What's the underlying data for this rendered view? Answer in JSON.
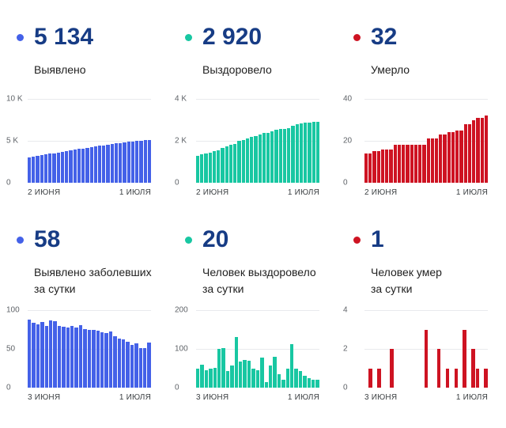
{
  "panels": [
    {
      "value": "5 134",
      "label": "Выявлено",
      "label2": "",
      "color": "#4461e8"
    },
    {
      "value": "2 920",
      "label": "Выздоровело",
      "label2": "",
      "color": "#18c7a2"
    },
    {
      "value": "32",
      "label": "Умерло",
      "label2": "",
      "color": "#ce1322"
    },
    {
      "value": "58",
      "label": "Выявлено заболевших",
      "label2": "за сутки",
      "color": "#4461e8"
    },
    {
      "value": "20",
      "label": "Человек выздоровело",
      "label2": "за сутки",
      "color": "#18c7a2"
    },
    {
      "value": "1",
      "label": "Человек умер",
      "label2": "за сутки",
      "color": "#ce1322"
    }
  ],
  "chart_data": [
    {
      "type": "bar",
      "title": "Выявлено (всего)",
      "x_first": "2 ИЮНЯ",
      "x_last": "1 ИЮЛЯ",
      "y_ticks": [
        "10 K",
        "5 K",
        "0"
      ],
      "ymax": 10000,
      "ylim": [
        0,
        10000
      ],
      "grid": true,
      "legend": false,
      "values": [
        3033,
        3121,
        3205,
        3287,
        3372,
        3452,
        3539,
        3625,
        3705,
        3784,
        3862,
        3942,
        4020,
        4101,
        4177,
        4252,
        4326,
        4399,
        4470,
        4540,
        4612,
        4678,
        4741,
        4803,
        4862,
        4917,
        4974,
        5025,
        5076,
        5134
      ]
    },
    {
      "type": "bar",
      "title": "Выздоровело (всего)",
      "x_first": "2 ИЮНЯ",
      "x_last": "1 ИЮЛЯ",
      "y_ticks": [
        "4 K",
        "2 K",
        "0"
      ],
      "ymax": 4000,
      "ylim": [
        0,
        4000
      ],
      "grid": true,
      "legend": false,
      "values": [
        1297,
        1345,
        1405,
        1450,
        1498,
        1550,
        1650,
        1752,
        1794,
        1852,
        1982,
        2050,
        2122,
        2192,
        2242,
        2287,
        2365,
        2380,
        2438,
        2518,
        2553,
        2573,
        2623,
        2735,
        2783,
        2825,
        2855,
        2880,
        2900,
        2920
      ]
    },
    {
      "type": "bar",
      "title": "Умерло (всего)",
      "x_first": "2 ИЮНЯ",
      "x_last": "1 ИЮЛЯ",
      "y_ticks": [
        "40",
        "20",
        "0"
      ],
      "ymax": 40,
      "ylim": [
        0,
        40
      ],
      "grid": true,
      "legend": false,
      "values": [
        14,
        14,
        15,
        15,
        16,
        16,
        16,
        18,
        18,
        18,
        18,
        18,
        18,
        18,
        18,
        21,
        21,
        21,
        23,
        23,
        24,
        24,
        25,
        25,
        28,
        28,
        30,
        31,
        31,
        32
      ]
    },
    {
      "type": "bar",
      "title": "Выявлено заболевших за сутки",
      "x_first": "3 ИЮНЯ",
      "x_last": "1 ИЮЛЯ",
      "y_ticks": [
        "100",
        "50",
        "0"
      ],
      "ymax": 100,
      "ylim": [
        0,
        100
      ],
      "grid": true,
      "legend": false,
      "values": [
        88,
        84,
        82,
        85,
        80,
        87,
        86,
        80,
        79,
        78,
        80,
        78,
        81,
        76,
        75,
        74,
        73,
        71,
        70,
        72,
        66,
        63,
        62,
        59,
        55,
        57,
        51,
        51,
        58
      ]
    },
    {
      "type": "bar",
      "title": "Человек выздоровело за сутки",
      "x_first": "3 ИЮНЯ",
      "x_last": "1 ИЮЛЯ",
      "y_ticks": [
        "200",
        "100",
        "0"
      ],
      "ymax": 200,
      "ylim": [
        0,
        200
      ],
      "grid": true,
      "legend": false,
      "values": [
        48,
        60,
        45,
        48,
        52,
        100,
        102,
        42,
        58,
        130,
        68,
        72,
        70,
        50,
        45,
        78,
        15,
        58,
        80,
        35,
        20,
        50,
        112,
        48,
        42,
        30,
        25,
        20,
        20
      ]
    },
    {
      "type": "bar",
      "title": "Человек умер за сутки",
      "x_first": "3 ИЮНЯ",
      "x_last": "1 ИЮЛЯ",
      "y_ticks": [
        "4",
        "2",
        "0"
      ],
      "ymax": 4,
      "ylim": [
        0,
        4
      ],
      "grid": true,
      "legend": false,
      "values": [
        0,
        1,
        0,
        1,
        0,
        0,
        2,
        0,
        0,
        0,
        0,
        0,
        0,
        0,
        3,
        0,
        0,
        2,
        0,
        1,
        0,
        1,
        0,
        3,
        0,
        2,
        1,
        0,
        1
      ]
    }
  ]
}
